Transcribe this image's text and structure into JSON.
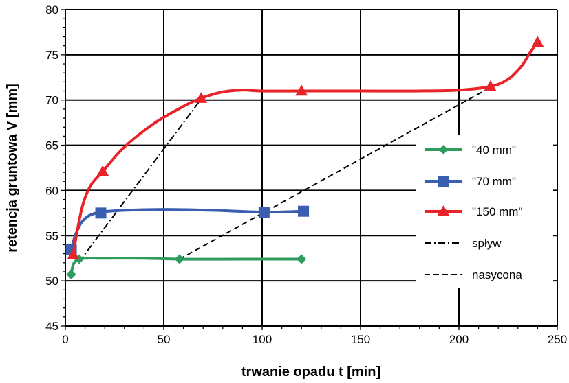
{
  "chart_data": {
    "type": "line",
    "xlabel": "trwanie opadu t [min]",
    "ylabel": "retencja gruntowa V [mm]",
    "xlim": [
      0,
      250
    ],
    "ylim": [
      45,
      80
    ],
    "xticks": [
      "0",
      "50",
      "100",
      "150",
      "200",
      "250"
    ],
    "yticks": [
      "45",
      "50",
      "55",
      "60",
      "65",
      "70",
      "75",
      "80"
    ],
    "grid": true,
    "legend_position": "right",
    "series": [
      {
        "name": "\"40 mm\"",
        "color": "#2e9c5c",
        "marker": "diamond",
        "points": [
          [
            3,
            50.7
          ],
          [
            7,
            52.4
          ],
          [
            58,
            52.4
          ],
          [
            120,
            52.4
          ]
        ],
        "curve": [
          [
            3,
            50.7
          ],
          [
            4,
            51.8
          ],
          [
            6,
            52.3
          ],
          [
            10,
            52.5
          ],
          [
            20,
            52.5
          ],
          [
            40,
            52.5
          ],
          [
            58,
            52.4
          ],
          [
            90,
            52.4
          ],
          [
            120,
            52.4
          ]
        ]
      },
      {
        "name": "\"70 mm\"",
        "color": "#3b5fb0",
        "marker": "square",
        "points": [
          [
            3,
            53.5
          ],
          [
            18,
            57.5
          ],
          [
            101,
            57.6
          ],
          [
            121,
            57.7
          ]
        ],
        "curve": [
          [
            3,
            53.5
          ],
          [
            5,
            55.0
          ],
          [
            8,
            56.4
          ],
          [
            12,
            57.2
          ],
          [
            18,
            57.6
          ],
          [
            30,
            57.8
          ],
          [
            50,
            57.9
          ],
          [
            75,
            57.8
          ],
          [
            101,
            57.6
          ],
          [
            121,
            57.7
          ]
        ]
      },
      {
        "name": "\"150 mm\"",
        "color": "#e8242a",
        "marker": "triangle",
        "points": [
          [
            4,
            52.9
          ],
          [
            19,
            62.1
          ],
          [
            69,
            70.2
          ],
          [
            120,
            71.0
          ],
          [
            216,
            71.5
          ],
          [
            240,
            76.4
          ]
        ],
        "curve": [
          [
            4,
            52.9
          ],
          [
            6,
            55.5
          ],
          [
            9,
            58.5
          ],
          [
            13,
            60.6
          ],
          [
            19,
            62.1
          ],
          [
            30,
            64.8
          ],
          [
            45,
            67.4
          ],
          [
            60,
            69.3
          ],
          [
            69,
            70.2
          ],
          [
            80,
            70.9
          ],
          [
            90,
            71.1
          ],
          [
            100,
            71.0
          ],
          [
            120,
            71.0
          ],
          [
            150,
            71.0
          ],
          [
            180,
            71.0
          ],
          [
            200,
            71.1
          ],
          [
            216,
            71.5
          ],
          [
            225,
            72.3
          ],
          [
            232,
            73.8
          ],
          [
            236,
            75.2
          ],
          [
            240,
            76.4
          ]
        ]
      },
      {
        "name": "spływ",
        "color": "#000000",
        "dash": "dashdot",
        "points": [
          [
            7,
            52.1
          ],
          [
            70,
            70.4
          ]
        ]
      },
      {
        "name": "nasycona",
        "color": "#000000",
        "dash": "dashed",
        "points": [
          [
            58,
            52.4
          ],
          [
            216,
            71.4
          ]
        ]
      }
    ]
  }
}
